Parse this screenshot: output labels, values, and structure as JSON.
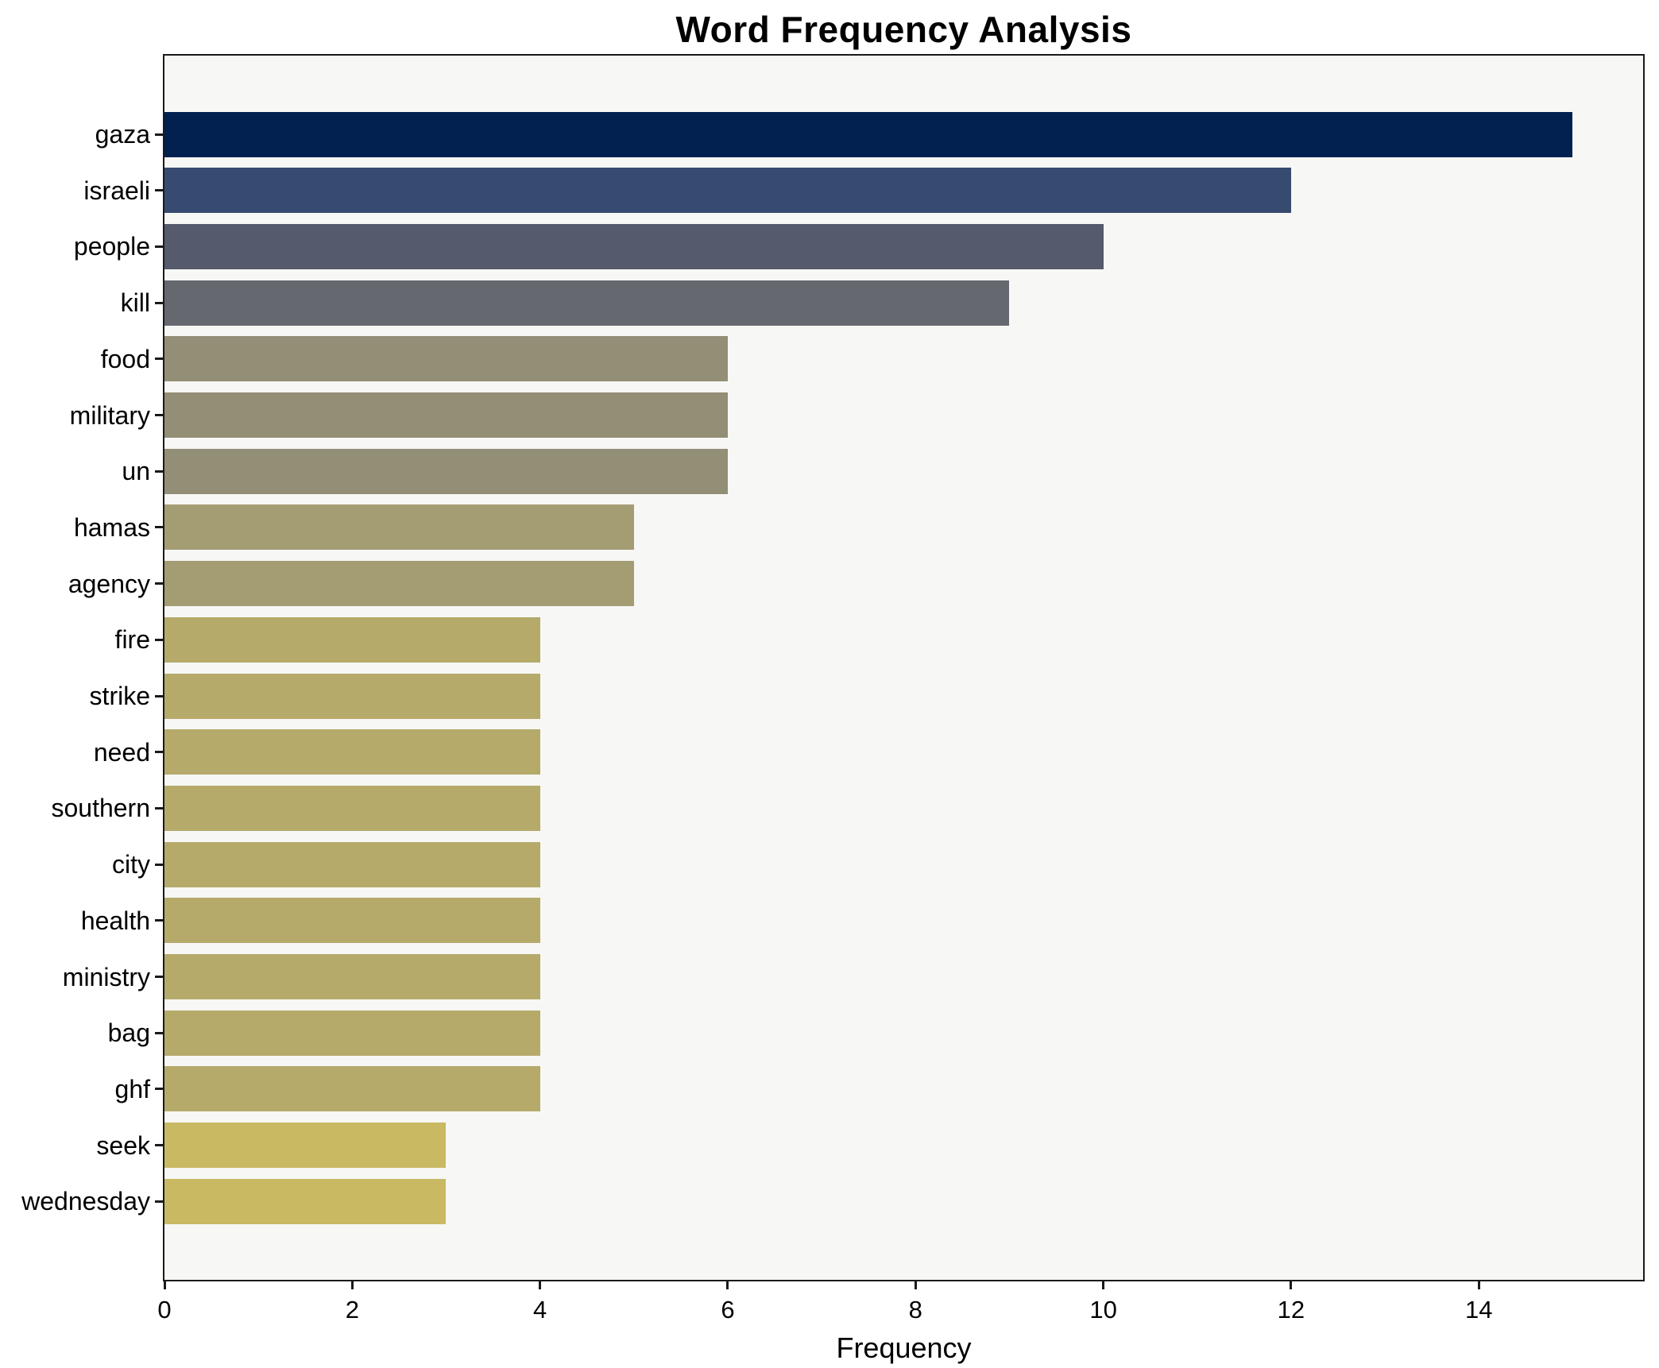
{
  "chart_data": {
    "type": "bar",
    "orientation": "horizontal",
    "title": "Word Frequency Analysis",
    "xlabel": "Frequency",
    "ylabel": "",
    "categories": [
      "gaza",
      "israeli",
      "people",
      "kill",
      "food",
      "military",
      "un",
      "hamas",
      "agency",
      "fire",
      "strike",
      "need",
      "southern",
      "city",
      "health",
      "ministry",
      "bag",
      "ghf",
      "seek",
      "wednesday"
    ],
    "values": [
      15,
      12,
      10,
      9,
      6,
      6,
      6,
      5,
      5,
      4,
      4,
      4,
      4,
      4,
      4,
      4,
      4,
      4,
      3,
      3
    ],
    "bar_colors": [
      "#032150",
      "#374a70",
      "#555b6c",
      "#65686f",
      "#938e76",
      "#938e76",
      "#938e76",
      "#a49d74",
      "#a49d74",
      "#b6aa6b",
      "#b6aa6b",
      "#b6aa6b",
      "#b6aa6b",
      "#b6aa6b",
      "#b6aa6b",
      "#b6aa6b",
      "#b6aa6b",
      "#b6aa6b",
      "#c8b962",
      "#c8b962"
    ],
    "xlim": [
      0,
      15.75
    ],
    "xticks": [
      0,
      2,
      4,
      6,
      8,
      10,
      12,
      14
    ],
    "grid": false,
    "legend": "none",
    "plot_background": "#f7f7f5",
    "figure_background": "#ffffff",
    "axis_color": "#1a1a1a",
    "text_color": "#000000"
  }
}
